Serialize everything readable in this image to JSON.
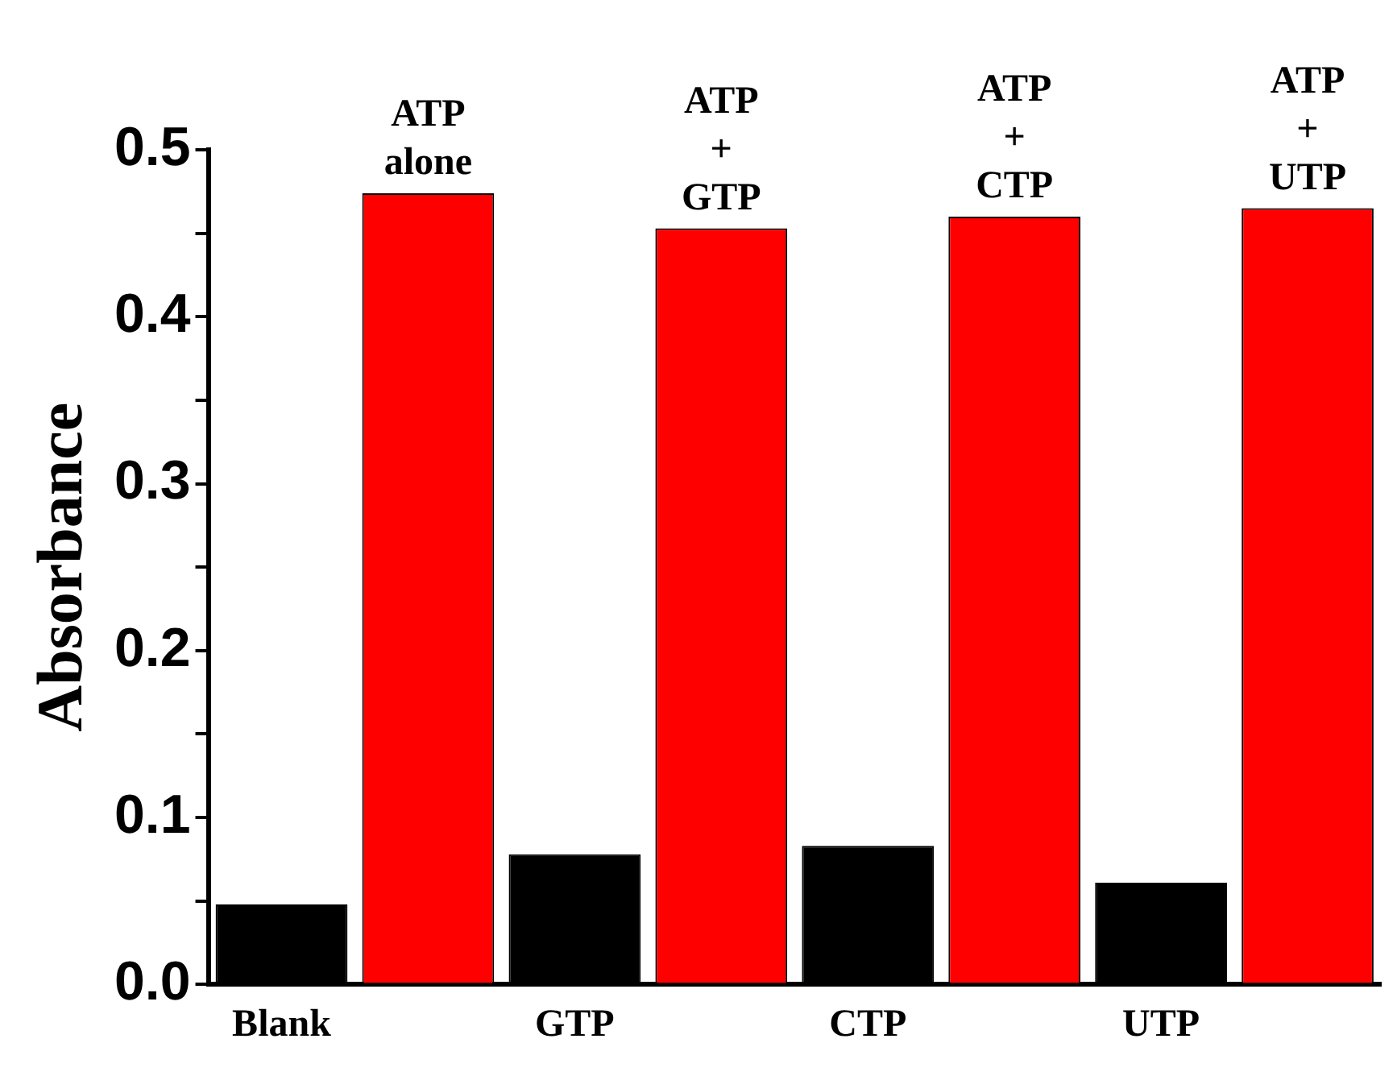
{
  "chart_data": {
    "type": "bar",
    "ylabel": "Absorbance",
    "categories": [
      "Blank",
      null,
      "GTP",
      null,
      "CTP",
      null,
      "UTP",
      null
    ],
    "values": [
      0.048,
      0.474,
      0.078,
      0.453,
      0.083,
      0.46,
      0.061,
      0.465
    ],
    "colors": [
      "#000000",
      "#ff0000",
      "#000000",
      "#ff0000",
      "#000000",
      "#ff0000",
      "#000000",
      "#ff0000"
    ],
    "ylim": [
      0,
      0.5
    ],
    "yticks": [
      {
        "value": 0,
        "label": "0.0"
      },
      {
        "value": 0.05,
        "label": null
      },
      {
        "value": 0.1,
        "label": "0.1"
      },
      {
        "value": 0.15,
        "label": null
      },
      {
        "value": 0.2,
        "label": "0.2"
      },
      {
        "value": 0.25,
        "label": null
      },
      {
        "value": 0.3,
        "label": "0.3"
      },
      {
        "value": 0.35,
        "label": null
      },
      {
        "value": 0.4,
        "label": "0.4"
      },
      {
        "value": 0.45,
        "label": null
      },
      {
        "value": 0.5,
        "label": "0.5"
      }
    ],
    "annotations": [
      "ATP alone",
      "ATP + GTP",
      "ATP + CTP",
      "ATP + UTP"
    ]
  }
}
